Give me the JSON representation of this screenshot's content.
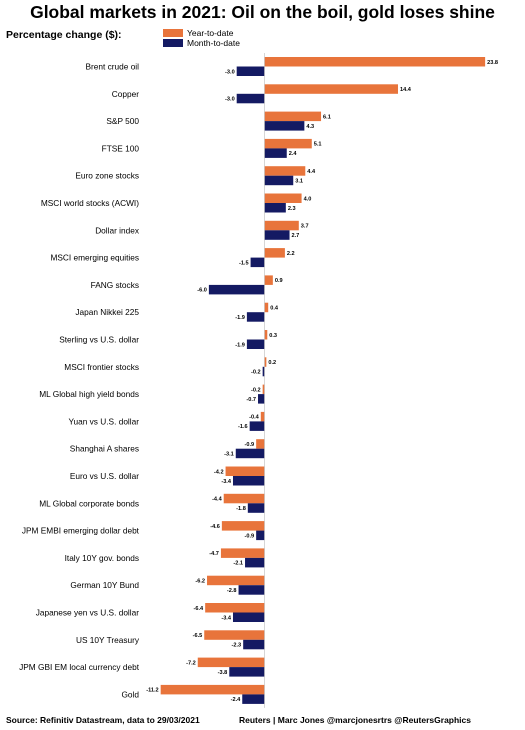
{
  "chart_data": {
    "type": "bar",
    "orientation": "horizontal",
    "title": "Global markets in 2021: Oil on the boil, gold loses shine",
    "subtitle": "Percentage change ($):",
    "legend_placement": "top-left",
    "categories": [
      "Brent crude oil",
      "Copper",
      "S&P 500",
      "FTSE 100",
      "Euro zone stocks",
      "MSCI world stocks (ACWI)",
      "Dollar index",
      "MSCI emerging equities",
      "FANG stocks",
      "Japan Nikkei 225",
      "Sterling vs U.S. dollar",
      "MSCI frontier stocks",
      "ML Global high yield bonds",
      "Yuan vs U.S. dollar",
      "Shanghai A shares",
      "Euro vs U.S. dollar",
      "ML Global corporate bonds",
      "JPM EMBI emerging dollar debt",
      "Italy 10Y gov. bonds",
      "German 10Y Bund",
      "Japanese yen vs U.S. dollar",
      "US 10Y Treasury",
      "JPM GBI EM local currency debt",
      "Gold"
    ],
    "series": [
      {
        "name": "Year-to-date",
        "color": "#e8743b",
        "values": [
          23.8,
          14.4,
          6.1,
          5.1,
          4.4,
          4.0,
          3.7,
          2.2,
          0.9,
          0.4,
          0.3,
          0.2,
          -0.2,
          -0.4,
          -0.9,
          -4.2,
          -4.4,
          -4.6,
          -4.7,
          -6.2,
          -6.4,
          -6.5,
          -7.2,
          -11.2
        ],
        "labels": [
          "23.8",
          "14.4",
          "6.1",
          "5.1",
          "4.4",
          "4.0",
          "3.7",
          "2.2",
          "0.9",
          "0.4",
          "0.3",
          "0.2",
          "-0.2",
          "-0.4",
          "-0.9",
          "-4.2",
          "-4.4",
          "-4.6",
          "-4.7",
          "-6.2",
          "-6.4",
          "-6.5",
          "-7.2",
          "-11.2"
        ]
      },
      {
        "name": "Month-to-date",
        "color": "#141a63",
        "values": [
          -3.0,
          -3.0,
          4.3,
          2.4,
          3.1,
          2.3,
          2.7,
          -1.5,
          -6.0,
          -1.9,
          -1.9,
          -0.2,
          -0.7,
          -1.6,
          -3.1,
          -3.4,
          -1.8,
          -0.9,
          -2.1,
          -2.8,
          -3.4,
          -2.3,
          -3.8,
          -2.4
        ],
        "labels": [
          "-3.0",
          "-3.0",
          "4.3",
          "2.4",
          "3.1",
          "2.3",
          "2.7",
          "-1.5",
          "-6.0",
          "-1.9",
          "-1.9",
          "-0.2",
          "-0.7",
          "-1.6",
          "-3.1",
          "-3.4",
          "-1.8",
          "-0.9",
          "-2.1",
          "-2.8",
          "-3.4",
          "-2.3",
          "-3.8",
          "-2.4"
        ]
      }
    ],
    "xlim": [
      -11.5,
      24
    ],
    "grid": false
  },
  "footer": {
    "source": "Source: Refinitiv Datastream, data to 29/03/2021",
    "credit": "Reuters | Marc Jones @marcjonesrtrs @ReutersGraphics"
  }
}
